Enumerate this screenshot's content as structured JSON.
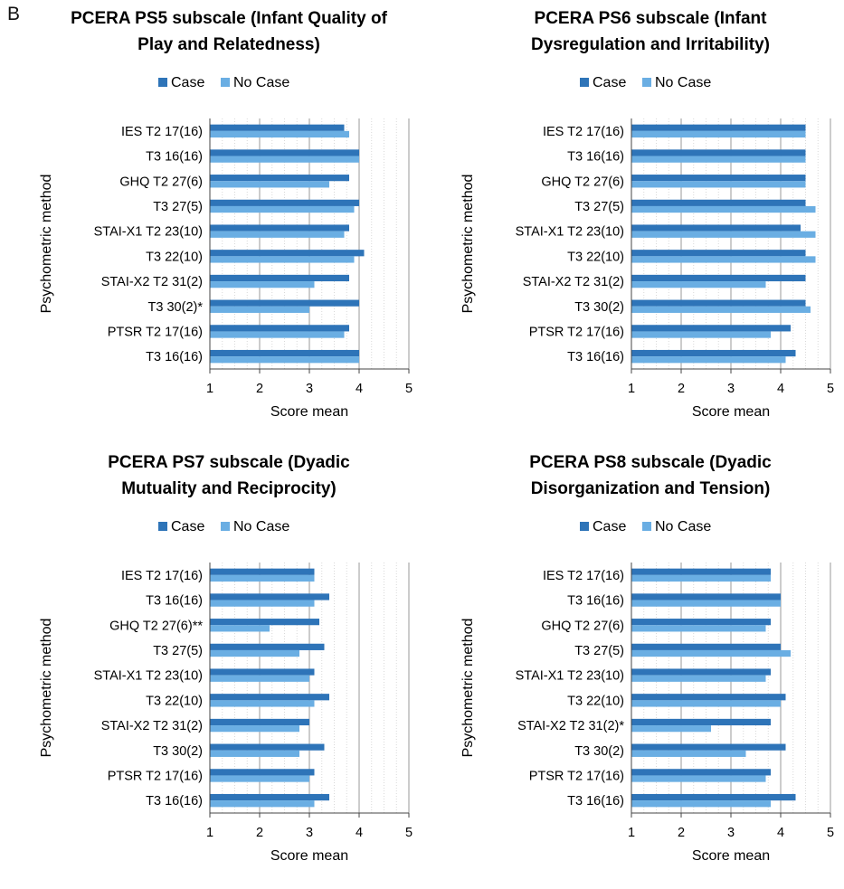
{
  "panel_letter": "B",
  "colors": {
    "case": "#2e74b8",
    "no_case": "#6aaee3",
    "axis": "#444444",
    "grid": "#d9d9d9"
  },
  "chart_data": [
    {
      "type": "bar",
      "orientation": "horizontal",
      "title": [
        "PCERA PS5 subscale (Infant Quality of",
        "Play and Relatedness)"
      ],
      "xlabel": "Score mean",
      "ylabel": "Psychometric method",
      "xlim": [
        1,
        5
      ],
      "xticks": [
        "1",
        "2",
        "3",
        "4",
        "5"
      ],
      "legend": [
        "Case",
        "No Case"
      ],
      "legend_position": "top",
      "categories": [
        "IES T2 17(16)",
        "T3 16(16)",
        "GHQ T2 27(6)",
        "T3 27(5)",
        "STAI-X1 T2 23(10)",
        "T3 22(10)",
        "STAI-X2 T2  31(2)",
        "T3 30(2)*",
        "PTSR   T2 17(16)",
        "T3 16(16)"
      ],
      "series": [
        {
          "name": "Case",
          "values": [
            3.7,
            4.0,
            3.8,
            4.0,
            3.8,
            4.1,
            3.8,
            4.0,
            3.8,
            4.0
          ]
        },
        {
          "name": "No Case",
          "values": [
            3.8,
            4.0,
            3.4,
            3.9,
            3.7,
            3.9,
            3.1,
            3.0,
            3.7,
            4.0
          ]
        }
      ]
    },
    {
      "type": "bar",
      "orientation": "horizontal",
      "title": [
        "PCERA PS6 subscale (Infant",
        "Dysregulation and Irritability)"
      ],
      "xlabel": "Score mean",
      "ylabel": "Psychometric method",
      "xlim": [
        1,
        5
      ],
      "xticks": [
        "1",
        "2",
        "3",
        "4",
        "5"
      ],
      "legend": [
        "Case",
        "No Case"
      ],
      "legend_position": "top",
      "categories": [
        "IES T2 17(16)",
        "T3 16(16)",
        "GHQ T2 27(6)",
        "T3 27(5)",
        "STAI-X1 T2 23(10)",
        "T3 22(10)",
        "STAI-X2 T2  31(2)",
        "T3 30(2)",
        "PTSR   T2 17(16)",
        "T3 16(16)"
      ],
      "series": [
        {
          "name": "Case",
          "values": [
            4.5,
            4.5,
            4.5,
            4.5,
            4.4,
            4.5,
            4.5,
            4.5,
            4.2,
            4.3
          ]
        },
        {
          "name": "No Case",
          "values": [
            4.5,
            4.5,
            4.5,
            4.7,
            4.7,
            4.7,
            3.7,
            4.6,
            3.8,
            4.1
          ]
        }
      ]
    },
    {
      "type": "bar",
      "orientation": "horizontal",
      "title": [
        "PCERA PS7 subscale (Dyadic",
        "Mutuality and Reciprocity)"
      ],
      "xlabel": "Score mean",
      "ylabel": "Psychometric method",
      "xlim": [
        1,
        5
      ],
      "xticks": [
        "1",
        "2",
        "3",
        "4",
        "5"
      ],
      "legend": [
        "Case",
        "No Case"
      ],
      "legend_position": "top",
      "categories": [
        "IES T2 17(16)",
        "T3 16(16)",
        "GHQ T2 27(6)**",
        "T3 27(5)",
        "STAI-X1 T2 23(10)",
        "T3 22(10)",
        "STAI-X2 T2  31(2)",
        "T3 30(2)",
        "PTSR   T2 17(16)",
        "T3 16(16)"
      ],
      "series": [
        {
          "name": "Case",
          "values": [
            3.1,
            3.4,
            3.2,
            3.3,
            3.1,
            3.4,
            3.0,
            3.3,
            3.1,
            3.4
          ]
        },
        {
          "name": "No Case",
          "values": [
            3.1,
            3.1,
            2.2,
            2.8,
            3.0,
            3.1,
            2.8,
            2.8,
            3.0,
            3.1
          ]
        }
      ]
    },
    {
      "type": "bar",
      "orientation": "horizontal",
      "title": [
        "PCERA PS8 subscale (Dyadic",
        "Disorganization and Tension)"
      ],
      "xlabel": "Score mean",
      "ylabel": "Psychometric method",
      "xlim": [
        1,
        5
      ],
      "xticks": [
        "1",
        "2",
        "3",
        "4",
        "5"
      ],
      "legend": [
        "Case",
        "No Case"
      ],
      "legend_position": "top",
      "categories": [
        "IES T2 17(16)",
        "T3 16(16)",
        "GHQ T2 27(6)",
        "T3 27(5)",
        "STAI-X1 T2 23(10)",
        "T3 22(10)",
        "STAI-X2 T2  31(2)*",
        "T3 30(2)",
        "PTSR   T2 17(16)",
        "T3 16(16)"
      ],
      "series": [
        {
          "name": "Case",
          "values": [
            3.8,
            4.0,
            3.8,
            4.0,
            3.8,
            4.1,
            3.8,
            4.1,
            3.8,
            4.3
          ]
        },
        {
          "name": "No Case",
          "values": [
            3.8,
            4.0,
            3.7,
            4.2,
            3.7,
            4.0,
            2.6,
            3.3,
            3.7,
            3.8
          ]
        }
      ]
    }
  ]
}
